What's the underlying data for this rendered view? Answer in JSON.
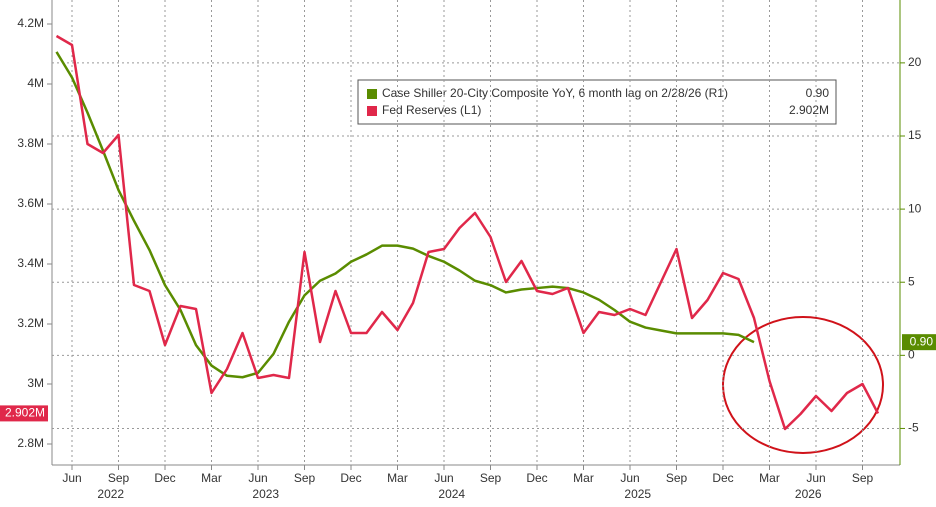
{
  "chart_data": {
    "type": "line",
    "x": [
      "2022-05",
      "2022-06",
      "2022-07",
      "2022-08",
      "2022-09",
      "2022-10",
      "2022-11",
      "2022-12",
      "2023-01",
      "2023-02",
      "2023-03",
      "2023-04",
      "2023-05",
      "2023-06",
      "2023-07",
      "2023-08",
      "2023-09",
      "2023-10",
      "2023-11",
      "2023-12",
      "2024-01",
      "2024-02",
      "2024-03",
      "2024-04",
      "2024-05",
      "2024-06",
      "2024-07",
      "2024-08",
      "2024-09",
      "2024-10",
      "2024-11",
      "2024-12",
      "2025-01",
      "2025-02",
      "2025-03",
      "2025-04",
      "2025-05",
      "2025-06",
      "2025-07",
      "2025-08",
      "2025-09",
      "2025-10",
      "2025-11",
      "2025-12",
      "2026-01",
      "2026-02",
      "2026-03",
      "2026-04",
      "2026-05",
      "2026-06",
      "2026-07",
      "2026-08",
      "2026-09",
      "2026-10"
    ],
    "series": [
      {
        "name": "Case Shiller 20-City Composite YoY, 6 month lag on 2/28/26 (R1)",
        "color": "#5a8c00",
        "axis": "y2",
        "last_label": "0.90",
        "values": [
          20.75,
          19.0,
          16.6,
          14.0,
          11.3,
          9.2,
          7.2,
          4.8,
          3.1,
          0.7,
          -0.7,
          -1.4,
          -1.5,
          -1.2,
          0.1,
          2.3,
          4.1,
          5.1,
          5.6,
          6.4,
          6.9,
          7.5,
          7.5,
          7.3,
          6.8,
          6.4,
          5.8,
          5.1,
          4.8,
          4.3,
          4.5,
          4.6,
          4.7,
          4.6,
          4.3,
          3.8,
          3.1,
          2.3,
          1.9,
          1.7,
          1.5,
          1.5,
          1.5,
          1.5,
          1.4,
          0.9,
          null,
          null,
          null,
          null,
          null,
          null,
          null,
          null
        ]
      },
      {
        "name": "Fed Reserves (L1)",
        "color": "#e0284a",
        "axis": "y",
        "last_label": "2.902M",
        "values": [
          4.16,
          4.13,
          3.8,
          3.77,
          3.83,
          3.33,
          3.31,
          3.13,
          3.26,
          3.25,
          2.97,
          3.05,
          3.17,
          3.02,
          3.03,
          3.02,
          3.44,
          3.14,
          3.31,
          3.17,
          3.17,
          3.24,
          3.18,
          3.27,
          3.44,
          3.45,
          3.52,
          3.57,
          3.49,
          3.34,
          3.41,
          3.31,
          3.3,
          3.32,
          3.17,
          3.24,
          3.23,
          3.25,
          3.23,
          3.34,
          3.45,
          3.22,
          3.28,
          3.37,
          3.35,
          3.22,
          3.01,
          2.85,
          2.9,
          2.96,
          2.91,
          2.97,
          3.0,
          2.902
        ]
      }
    ],
    "ylim": [
      2.73,
      4.28
    ],
    "yticks": [
      {
        "value": 2.8,
        "label": "2.8M"
      },
      {
        "value": 3,
        "label": "3M"
      },
      {
        "value": 3.2,
        "label": "3.2M"
      },
      {
        "value": 3.4,
        "label": "3.4M"
      },
      {
        "value": 3.6,
        "label": "3.6M"
      },
      {
        "value": 3.8,
        "label": "3.8M"
      },
      {
        "value": 4,
        "label": "4M"
      },
      {
        "value": 4.2,
        "label": "4.2M"
      }
    ],
    "y2lim": [
      -7.5,
      24.3
    ],
    "y2ticks": [
      -5,
      0,
      5,
      10,
      15,
      20
    ],
    "xticks": [
      {
        "value": "2022-06",
        "label": "Jun"
      },
      {
        "value": "2022-09",
        "label": "Sep"
      },
      {
        "value": "2022-12",
        "label": "Dec"
      },
      {
        "value": "2023-03",
        "label": "Mar"
      },
      {
        "value": "2023-06",
        "label": "Jun"
      },
      {
        "value": "2023-09",
        "label": "Sep"
      },
      {
        "value": "2023-12",
        "label": "Dec"
      },
      {
        "value": "2024-03",
        "label": "Mar"
      },
      {
        "value": "2024-06",
        "label": "Jun"
      },
      {
        "value": "2024-09",
        "label": "Sep"
      },
      {
        "value": "2024-12",
        "label": "Dec"
      },
      {
        "value": "2025-03",
        "label": "Mar"
      },
      {
        "value": "2025-06",
        "label": "Jun"
      },
      {
        "value": "2025-09",
        "label": "Sep"
      },
      {
        "value": "2025-12",
        "label": "Dec"
      },
      {
        "value": "2026-03",
        "label": "Mar"
      },
      {
        "value": "2026-06",
        "label": "Jun"
      },
      {
        "value": "2026-09",
        "label": "Sep"
      }
    ],
    "years": [
      "2022",
      "2023",
      "2024",
      "2025",
      "2026"
    ],
    "grid": true
  }
}
